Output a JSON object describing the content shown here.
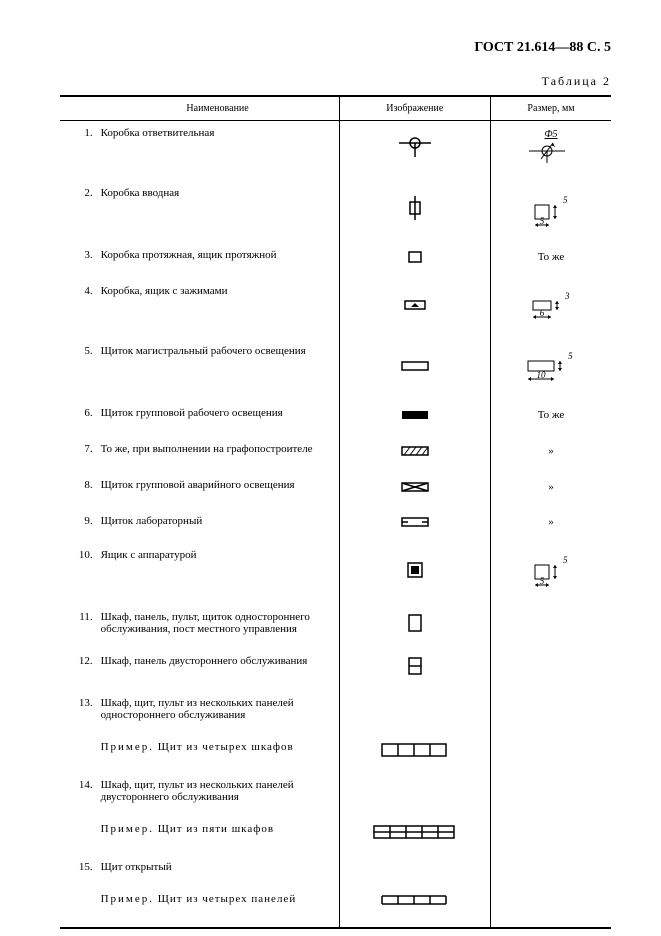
{
  "doc_header": "ГОСТ 21.614—88 С. 5",
  "table_caption": "Таблица 2",
  "headers": {
    "name": "Наименование",
    "image": "Изображение",
    "size": "Размер, мм"
  },
  "rows": [
    {
      "num": "1.",
      "name": "Коробка ответвительная",
      "symbol": "branch-box",
      "size_symbol": "branch-dim",
      "size_text": ""
    },
    {
      "num": "2.",
      "name": "Коробка вводная",
      "symbol": "input-box",
      "size_symbol": "square5-dim",
      "size_text": ""
    },
    {
      "num": "3.",
      "name": "Коробка протяжная, ящик протяжной",
      "symbol": "small-rect",
      "size_symbol": "",
      "size_text": "То же"
    },
    {
      "num": "4.",
      "name": "Коробка, ящик с зажимами",
      "symbol": "clamp-box",
      "size_symbol": "rect63-dim",
      "size_text": ""
    },
    {
      "num": "5.",
      "name": "Щиток магистральный рабочего освещения",
      "symbol": "open-rect",
      "size_symbol": "rect105-dim",
      "size_text": ""
    },
    {
      "num": "6.",
      "name": "Щиток групповой рабочего освещения",
      "symbol": "filled-rect",
      "size_symbol": "",
      "size_text": "То же"
    },
    {
      "num": "7.",
      "name": "То же, при выполнении на графопостроителе",
      "symbol": "hatched-rect",
      "size_symbol": "",
      "size_text": "»"
    },
    {
      "num": "8.",
      "name": "Щиток групповой аварийного освещения",
      "symbol": "crossed-rect",
      "size_symbol": "",
      "size_text": "»"
    },
    {
      "num": "9.",
      "name": "Щиток лабораторный",
      "symbol": "open-rect-narrow",
      "size_symbol": "",
      "size_text": "»"
    },
    {
      "num": "10.",
      "name": "Ящик с аппаратурой",
      "symbol": "double-square",
      "size_symbol": "square5s-dim",
      "size_text": ""
    },
    {
      "num": "11.",
      "name": "Шкаф, панель, пульт, щиток одностороннего обслуживания, пост местного управления",
      "symbol": "tall-rect",
      "size_symbol": "",
      "size_text": ""
    },
    {
      "num": "12.",
      "name": "Шкаф, панель двустороннего обслуживания",
      "symbol": "rect-hline",
      "size_symbol": "",
      "size_text": ""
    },
    {
      "num": "13.",
      "name": "Шкаф, щит, пульт из нескольких панелей одностороннего обслуживания",
      "symbol": "",
      "size_symbol": "",
      "size_text": ""
    },
    {
      "num": "",
      "name": "Пример. Щит из четырех шкафов",
      "symbol": "four-panels",
      "size_symbol": "",
      "size_text": "",
      "is_example": true
    },
    {
      "num": "14.",
      "name": "Шкаф, щит, пульт из нескольких панелей двустороннего обслуживания",
      "symbol": "",
      "size_symbol": "",
      "size_text": ""
    },
    {
      "num": "",
      "name": "Пример. Щит из пяти шкафов",
      "symbol": "five-panels-hline",
      "size_symbol": "",
      "size_text": "",
      "is_example": true
    },
    {
      "num": "15.",
      "name": "Щит открытый",
      "symbol": "",
      "size_symbol": "",
      "size_text": ""
    },
    {
      "num": "",
      "name": "Пример. Щит из четырех панелей",
      "symbol": "four-panels-open",
      "size_symbol": "",
      "size_text": "",
      "is_example": true
    }
  ],
  "dim_labels": {
    "phi5": "Ф5",
    "five": "5",
    "three": "3",
    "six": "6",
    "ten": "10"
  },
  "style": {
    "stroke": "#000",
    "fill_black": "#000",
    "fill_white": "#fff",
    "thin": 1,
    "thick": 1.5
  }
}
